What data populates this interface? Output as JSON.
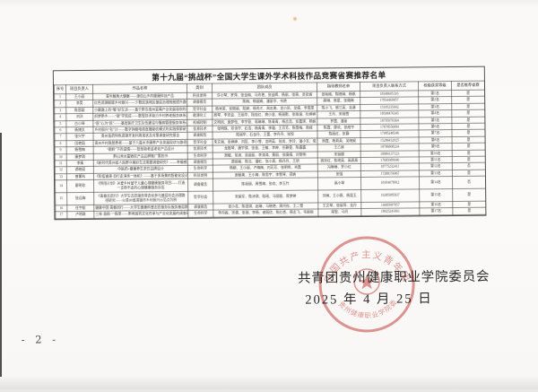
{
  "title": "第十九届“挑战杯”全国大学生课外学术科技作品竞赛省赛推荐名单",
  "table": {
    "headers": [
      "序号",
      "项目负责人",
      "作品名称",
      "类别",
      "团队成员",
      "指导教师名单",
      "项目负责人联系方式",
      "校级获奖等级",
      "是否推荐省赛"
    ],
    "rows": [
      [
        "1",
        "王小丽",
        "青年触角大健康——源自山乡的健康科技产品",
        "科技发明",
        "许小琴、罗萍、张金梅、马玲艳、张益辉、杨丽、张萌、吴安妮",
        "张咏梅、陈晓琳、杨帆",
        "18348605316",
        "第1名",
        "是"
      ],
      [
        "2",
        "李昊",
        "红色资源赋能乡村振兴——少数民族地区基层治理效能提升路径研究",
        "调查报告",
        "陈梅、杨丽娟、潘丽华、韦艳",
        "薛琳、周星、张璐琳",
        "17834469057",
        "第2名",
        "是"
      ],
      [
        "3",
        "陈思颖",
        "小康路上的“莓”好生活——基于黔东南州蓝莓产业发展现状的调查研究",
        "哲学社会",
        "杨秀英、吴晓丽、陆婷、杨秀才、周忠勇、龙小凤、吴倩、李恩恩",
        "陈小飞、郭兰英、吴潇",
        "15185235042",
        "第3名",
        "是"
      ],
      [
        "4",
        "刘洋",
        "织梦黔乡——“银”学双成——数智技术助力乡村养老服务体系建设研究",
        "能源化工",
        "周琴、李忠会、王丽华、陆桂红、龚小慧、杨丽影、张雨涵、杜婷婷",
        "王丹、宋瑞雪",
        "18508476345",
        "第4名",
        "是"
      ],
      [
        "5",
        "白小琴",
        "“医”心为“民”——基层医疗卫生队伍建设与慢病管理服务体系调查研究",
        "机械控制",
        "文明凤、袁梦怡、李宇豪、蒋琳琳、陈青青、杨志浩、安嘉琪、杨妮",
        "罗霞、潘丽",
        "18795970364",
        "第5名",
        "是"
      ],
      [
        "6",
        "杨博文",
        "乡村振兴“社”计——数字网络电商直播助农模式的实践探索研究",
        "信息技术",
        "张明珠、邓诗宇、石浩、杨青青、李璇、王芳芳、陈雪梅、周娅",
        "陈霞、廖欢、张皓宇",
        "17878556084",
        "第6名",
        "是"
      ],
      [
        "7",
        "张兴宇",
        "贵州苗药特色资源开发利用现状及对策调查研究报告",
        "调查报告",
        "陆丽华、石金丹、王蕾、李丹丹、张悦",
        "陈丽红、张静",
        "17085248346",
        "第7名",
        "是"
      ],
      [
        "8",
        "田艳丽",
        "贵州乡村旅居养老——基于六盘水市康养产业发展现状与路径的调查研究",
        "哲学社会",
        "朱文丽、余婷婷、刘蕊、李小雪、龙明英、张岚、李玲、潘小军、梁玉婷",
        "周霞、杨莉英、吴晓妮",
        "15286432925",
        "第8名",
        "是"
      ],
      [
        "9",
        "杨雪梅",
        "“银龄”下的温情——智慧助老适老化产品设计",
        "信息技术",
        "龙胜琴、唐宇琪、张慧、王敏、李婷、任静雯、陈露露",
        "王乙妹",
        "18786808234",
        "第9名",
        "是"
      ],
      [
        "10",
        "康梦琪",
        "黔山秀水富硒农产品品牌推广策划书",
        "生命科学",
        "周敏、吴迪、吴丽丽、李涛涛、黄丽、张倩倩、刘黎明",
        "宋丽娜",
        "18984137123",
        "第10名",
        "是"
      ],
      [
        "11",
        "李倩",
        "《新时代贵州省人民群众美好生活需要调查研究》——幸福感提升路径的探索分析",
        "调查报告",
        "龚丽丽、陈洁、潘虹、张小燕、杨丹丹、王玥",
        "周世红、陈明英、高燕燕",
        "17685089040",
        "第11名",
        "是"
      ],
      [
        "12",
        "谭晓丽",
        "中医药+健康养生茶饮品牌设计",
        "生命科学",
        "杨柳、王小丽、卢梅梅、刘芳芳、张明明、肖霞",
        "冯琳琳、罗小红",
        "18775232411",
        "第12名",
        "否"
      ],
      [
        "13",
        "曾繁科",
        "《防疫速递·自行走消杀一体机》——基于多场景的智能化设计",
        "科技发明",
        "谢丽美、王小梅、陈思宇、李雪琴、郑爽",
        "张强",
        "17288156967",
        "第13名",
        "是"
      ],
      [
        "14",
        "廖明珍",
        "《煦阳计划》关爱乡村留守儿童心理健康服务项目——打造一支带不走的心理健康服务队伍",
        "调查报告",
        "陈丽丽、周雪梅、张欢、李玉竹",
        "高小琴",
        "18184078912",
        "第14名",
        "否"
      ],
      [
        "15",
        "张远梅",
        "《青春志愿行》大学生志愿服务常态化参与基层社会治理路径研究——以贵州省清镇市乡村振兴示范点为例",
        "哲学社会",
        "宋丽军、陈诗琪、陆瑶、马丽丽、蒋梦婷",
        "刘琳、王小燕、杨昆玉",
        "16385985937",
        "第15名",
        "是"
      ],
      [
        "16",
        "任宇航",
        "健康中国 青春同行——大学生健康科普志愿服务队服务基层群众的实践探索与成效调查",
        "调查报告",
        "张小花、陈思琪、赵琳、马晓艳、周丹彤、王二雪",
        "王文琴、张丽萍、龙丹",
        "14685987057",
        "第16名",
        "是"
      ],
      [
        "17",
        "卢明珠",
        "三味·苗韵·一株草——黔地苗药文化传承与产业化发展的调查研究报告",
        "生命科学",
        "李丹妮、宋倩、张瑞、李杨、谢雨欣、陈红杏、杨志飞、韦丽丽",
        "梁智、马丹",
        "18025241061",
        "第17名",
        "是"
      ]
    ]
  },
  "footer": {
    "org": "共青团贵州健康职业学院委员会",
    "date": "2025 年 4 月 25 日"
  },
  "stamp": {
    "ring_text_top": "中国共产主义青年团",
    "ring_text_bottom": "贵州健康职业学院委员会",
    "color": "#c4403a"
  },
  "page": {
    "number": "- 2 -"
  },
  "colors": {
    "ink": "#3b3b36",
    "stamp_red": "#c4403a",
    "paper": "#faf9f7"
  }
}
